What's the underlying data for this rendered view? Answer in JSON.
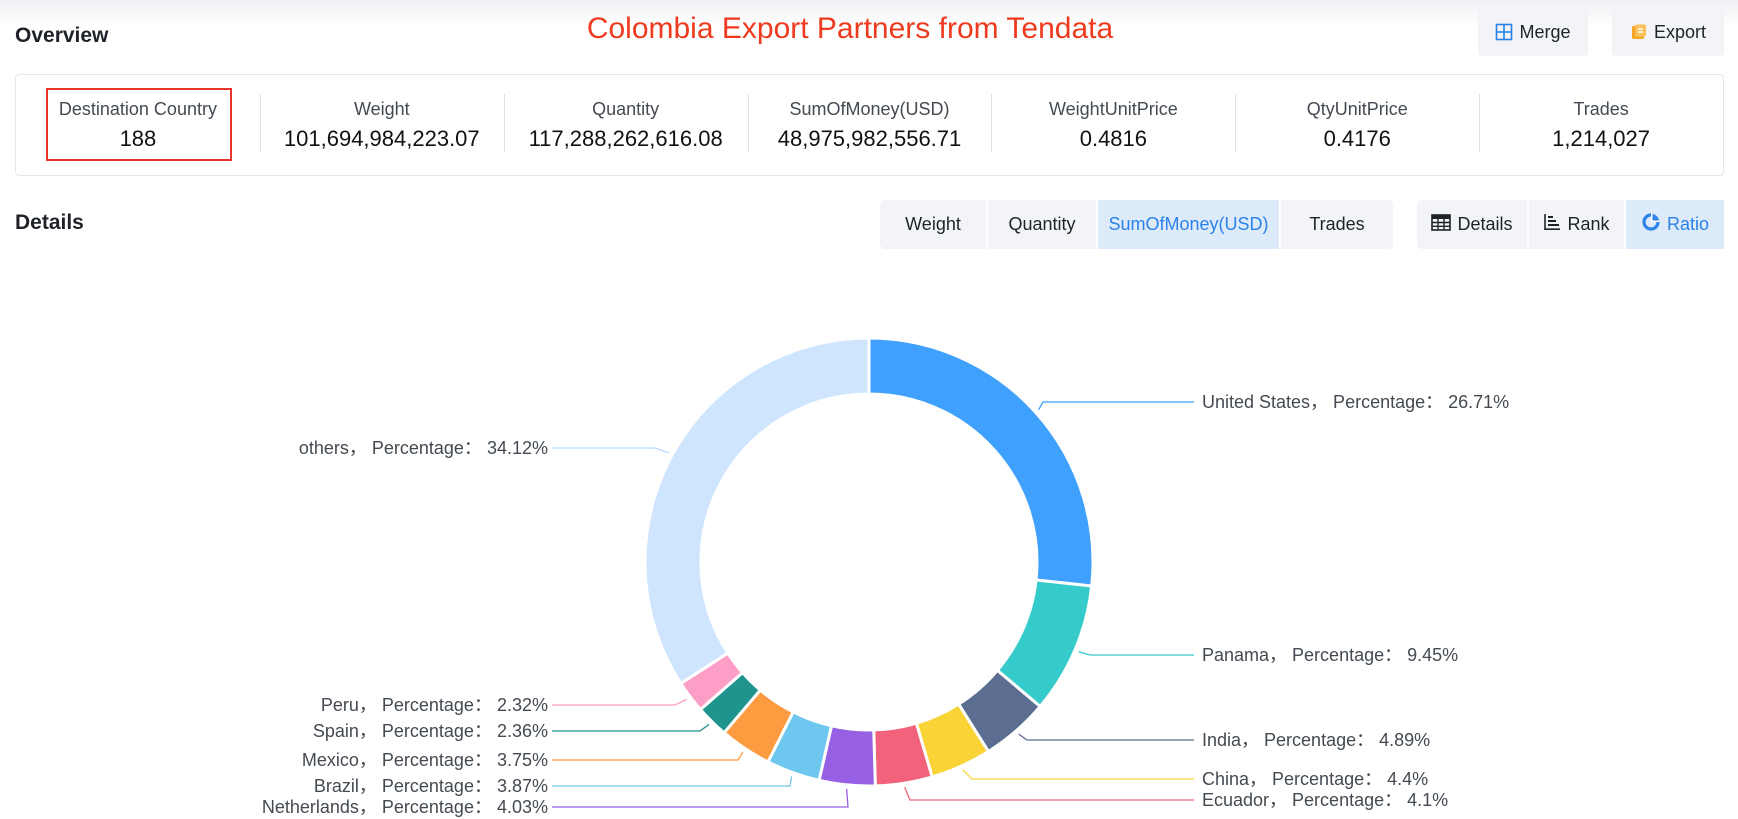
{
  "header": {
    "overview_title": "Overview",
    "banner": "Colombia Export Partners from Tendata",
    "merge_label": "Merge",
    "export_label": "Export"
  },
  "stats": [
    {
      "label": "Destination Country",
      "value": "188"
    },
    {
      "label": "Weight",
      "value": "101,694,984,223.07"
    },
    {
      "label": "Quantity",
      "value": "117,288,262,616.08"
    },
    {
      "label": "SumOfMoney(USD)",
      "value": "48,975,982,556.71"
    },
    {
      "label": "WeightUnitPrice",
      "value": "0.4816"
    },
    {
      "label": "QtyUnitPrice",
      "value": "0.4176"
    },
    {
      "label": "Trades",
      "value": "1,214,027"
    }
  ],
  "details": {
    "title": "Details",
    "metric_tabs": [
      "Weight",
      "Quantity",
      "SumOfMoney(USD)",
      "Trades"
    ],
    "active_metric": "SumOfMoney(USD)",
    "view_tabs": [
      "Details",
      "Rank",
      "Ratio"
    ],
    "active_view": "Ratio",
    "icons": [
      "table-icon",
      "rank-icon",
      "ratio-icon",
      "merge-icon",
      "export-icon"
    ],
    "accent_color": "#2b82e8"
  },
  "chart_data": {
    "type": "pie",
    "donut": true,
    "label_format": "{name}， Percentage： {value}%",
    "slices": [
      {
        "name": "United States",
        "value": 26.71,
        "color": "#3fa0fd"
      },
      {
        "name": "Panama",
        "value": 9.45,
        "color": "#36cbcb"
      },
      {
        "name": "India",
        "value": 4.89,
        "color": "#5b6e91"
      },
      {
        "name": "China",
        "value": 4.4,
        "color": "#fad337"
      },
      {
        "name": "Ecuador",
        "value": 4.1,
        "color": "#f2637b"
      },
      {
        "name": "Netherlands",
        "value": 4.03,
        "color": "#975fe4"
      },
      {
        "name": "Brazil",
        "value": 3.87,
        "color": "#6ec7ee"
      },
      {
        "name": "Mexico",
        "value": 3.75,
        "color": "#fd9b40"
      },
      {
        "name": "Spain",
        "value": 2.36,
        "color": "#1f948c"
      },
      {
        "name": "Peru",
        "value": 2.32,
        "color": "#fc9ec5"
      },
      {
        "name": "others",
        "value": 34.12,
        "color": "#cfe5fd"
      }
    ]
  }
}
